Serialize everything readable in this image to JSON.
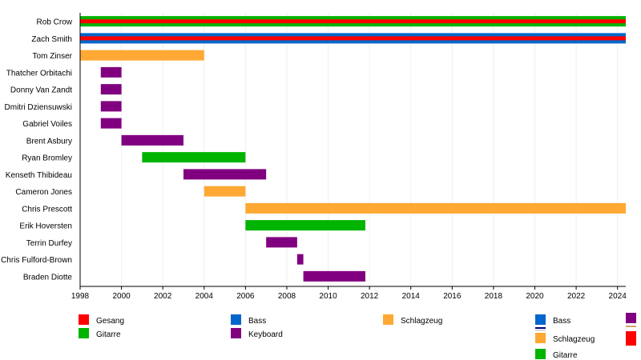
{
  "chart_data": {
    "type": "timeline",
    "xlim": [
      1998,
      2024.4
    ],
    "x_ticks": [
      "1998",
      "2000",
      "2002",
      "2004",
      "2006",
      "2008",
      "2010",
      "2012",
      "2014",
      "2016",
      "2018",
      "2020",
      "2022",
      "2024"
    ],
    "members": [
      {
        "name": "Rob Crow",
        "spans": [
          {
            "roles": [
              "Gitarre",
              "Gesang"
            ],
            "start": 1998.0,
            "end": 2024.4
          }
        ]
      },
      {
        "name": "Zach Smith",
        "spans": [
          {
            "roles": [
              "Bass",
              "Gesang"
            ],
            "start": 1998.0,
            "end": 2024.4
          }
        ]
      },
      {
        "name": "Tom Zinser",
        "spans": [
          {
            "roles": [
              "Schlagzeug"
            ],
            "start": 1998.0,
            "end": 2004.0
          }
        ]
      },
      {
        "name": "Thatcher Orbitachi",
        "spans": [
          {
            "roles": [
              "Keyboard"
            ],
            "start": 1999.0,
            "end": 2000.0
          }
        ]
      },
      {
        "name": "Donny Van Zandt",
        "spans": [
          {
            "roles": [
              "Keyboard"
            ],
            "start": 1999.0,
            "end": 2000.0
          }
        ]
      },
      {
        "name": "Dmitri Dziensuwski",
        "spans": [
          {
            "roles": [
              "Keyboard"
            ],
            "start": 1999.0,
            "end": 2000.0
          }
        ]
      },
      {
        "name": "Gabriel Voiles",
        "spans": [
          {
            "roles": [
              "Keyboard"
            ],
            "start": 1999.0,
            "end": 2000.0
          }
        ]
      },
      {
        "name": "Brent Asbury",
        "spans": [
          {
            "roles": [
              "Keyboard"
            ],
            "start": 2000.0,
            "end": 2003.0
          }
        ]
      },
      {
        "name": "Ryan Bromley",
        "spans": [
          {
            "roles": [
              "Gitarre"
            ],
            "start": 2001.0,
            "end": 2006.0
          }
        ]
      },
      {
        "name": "Kenseth Thibideau",
        "spans": [
          {
            "roles": [
              "Keyboard"
            ],
            "start": 2003.0,
            "end": 2007.0
          }
        ]
      },
      {
        "name": "Cameron Jones",
        "spans": [
          {
            "roles": [
              "Schlagzeug"
            ],
            "start": 2004.0,
            "end": 2006.0
          }
        ]
      },
      {
        "name": "Chris Prescott",
        "spans": [
          {
            "roles": [
              "Schlagzeug"
            ],
            "start": 2006.0,
            "end": 2024.4
          }
        ]
      },
      {
        "name": "Erik Hoversten",
        "spans": [
          {
            "roles": [
              "Gitarre"
            ],
            "start": 2006.0,
            "end": 2011.8
          }
        ]
      },
      {
        "name": "Terrin Durfey",
        "spans": [
          {
            "roles": [
              "Keyboard"
            ],
            "start": 2007.0,
            "end": 2008.5
          }
        ]
      },
      {
        "name": "Chris Fulford-Brown",
        "spans": [
          {
            "roles": [
              "Keyboard"
            ],
            "start": 2008.5,
            "end": 2008.8
          }
        ]
      },
      {
        "name": "Braden Diotte",
        "spans": [
          {
            "roles": [
              "Keyboard"
            ],
            "start": 2008.8,
            "end": 2011.8
          }
        ]
      }
    ],
    "legend": [
      {
        "label": "Gesang",
        "color": "#ff0000"
      },
      {
        "label": "Gitarre",
        "color": "#00b400"
      },
      {
        "label": "Bass",
        "color": "#0066cc"
      },
      {
        "label": "Keyboard",
        "color": "#800080"
      },
      {
        "label": "Schlagzeug",
        "color": "#ffa833"
      }
    ],
    "legend2": [
      {
        "label": "Bass",
        "color": "#0066cc"
      },
      {
        "label": "Schlagzeug",
        "color": "#ffa833"
      },
      {
        "label": "Gitarre",
        "color": "#00b400"
      }
    ],
    "role_colors": {
      "Gesang": "#ff0000",
      "Gitarre": "#00b400",
      "Bass": "#0066cc",
      "Keyboard": "#800080",
      "Schlagzeug": "#ffa833"
    }
  }
}
